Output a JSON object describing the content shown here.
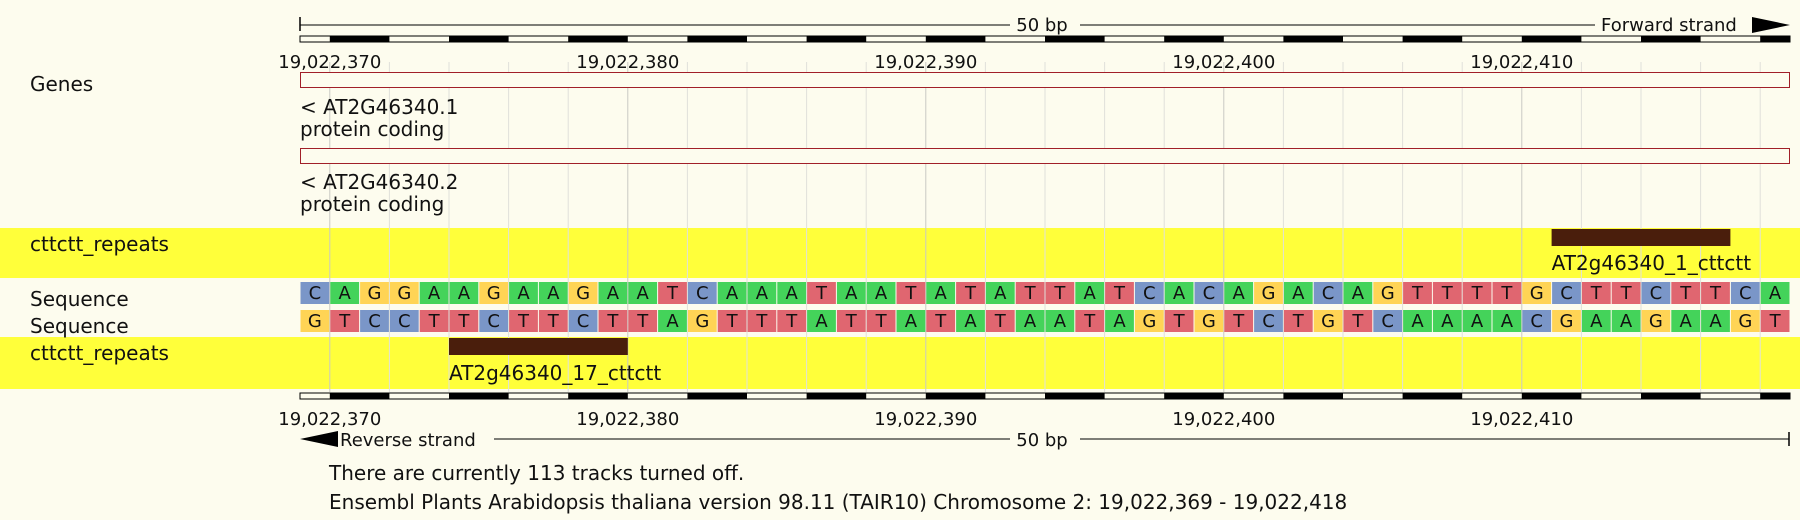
{
  "ruler": {
    "width_label": "50 bp",
    "forward_label": "Forward strand",
    "reverse_label": "Reverse strand",
    "ticks": [
      "19,022,370",
      "19,022,380",
      "19,022,390",
      "19,022,400",
      "19,022,410"
    ]
  },
  "tracks": {
    "genes_label": "Genes",
    "repeats_label": "cttctt_repeats",
    "sequence_label": "Sequence"
  },
  "transcripts": [
    {
      "name": "< AT2G46340.1",
      "biotype": "protein coding"
    },
    {
      "name": "< AT2G46340.2",
      "biotype": "protein coding"
    }
  ],
  "repeats": {
    "forward": {
      "name": "AT2g46340_1_cttctt",
      "start": 42,
      "end": 48
    },
    "reverse": {
      "name": "AT2g46340_17_cttctt",
      "start": 5,
      "end": 11
    }
  },
  "sequence": {
    "forward": "CAGGAAGAAGAATCAAATAATATATTATCACAGACAGTTTTGCTTCTTCA",
    "reverse": "GTCCTTCTTCTTAGTTTATTATATAATAGTGTCTGTCAAAACGAAGAAGT"
  },
  "colors": {
    "A": "#44d35a",
    "C": "#7a96c8",
    "G": "#ffd455",
    "T": "#e06670",
    "highlight": "#ffff3a",
    "feature": "#4a1e0c",
    "transcript": "#a11f28"
  },
  "footer": {
    "tracks_off": "There are currently 113 tracks turned off.",
    "version": "Ensembl Plants Arabidopsis thaliana version 98.11 (TAIR10) Chromosome 2: 19,022,369 - 19,022,418"
  }
}
